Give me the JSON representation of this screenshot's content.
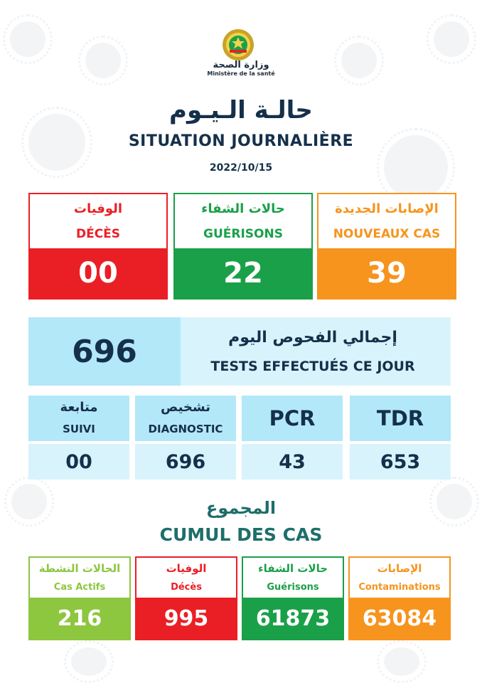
{
  "header": {
    "ministry_ar": "وزارة الصحة",
    "ministry_fr": "Ministère de la santé",
    "title_ar": "حالـة الـيـوم",
    "title_fr": "SITUATION JOURNALIÈRE",
    "date": "2022/10/15"
  },
  "daily": {
    "deces": {
      "label_ar": "الوفيات",
      "label_fr": "DÉCÈS",
      "value": "00"
    },
    "guerisons": {
      "label_ar": "حالات الشفاء",
      "label_fr": "GUÉRISONS",
      "value": "22"
    },
    "nouveaux_cas": {
      "label_ar": "الإصابات الجديدة",
      "label_fr": "NOUVEAUX CAS",
      "value": "39"
    }
  },
  "tests": {
    "total_label_ar": "إجمالي الفحوص اليوم",
    "total_label_fr": "TESTS EFFECTUÉS CE JOUR",
    "total_value": "696",
    "suivi": {
      "label_ar": "متابعة",
      "label_fr": "SUIVI",
      "value": "00"
    },
    "diagnostic": {
      "label_ar": "تشخيص",
      "label_fr": "DIAGNOSTIC",
      "value": "696"
    },
    "pcr": {
      "label": "PCR",
      "value": "43"
    },
    "tdr": {
      "label": "TDR",
      "value": "653"
    }
  },
  "cumul": {
    "title_ar": "المجموع",
    "title_fr": "CUMUL DES CAS",
    "actifs": {
      "label_ar": "الحالات النشطة",
      "label_fr": "Cas Actifs",
      "value": "216"
    },
    "deces": {
      "label_ar": "الوفيات",
      "label_fr": "Décès",
      "value": "995"
    },
    "guerisons": {
      "label_ar": "حالات الشفاء",
      "label_fr": "Guérisons",
      "value": "61873"
    },
    "contaminations": {
      "label_ar": "الإصابات",
      "label_fr": "Contaminations",
      "value": "63084"
    }
  },
  "colors": {
    "red": "#ea1f25",
    "green": "#1aa049",
    "orange": "#f6941d",
    "light_green": "#8dc63f",
    "light_blue": "#b3e8f8",
    "navy": "#15304a",
    "teal": "#1e6e6a"
  },
  "icons": [
    "ministry-emblem-icon",
    "virus-background-icon"
  ]
}
